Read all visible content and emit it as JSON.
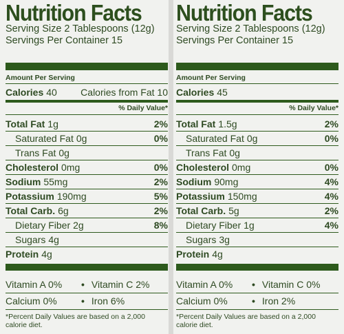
{
  "labels": [
    {
      "title": "Nutrition Facts",
      "serving_size": "Serving Size 2 Tablespoons (12g)",
      "servings": "Servings Per Container 15",
      "amount_per_serving": "Amount Per Serving",
      "calories_label": "Calories",
      "calories": "40",
      "calories_fat": "Calories from Fat 10",
      "dv_header": "% Daily Value*",
      "nutrients": [
        {
          "name": "Total Fat",
          "amount": "1g",
          "dv": "2%"
        },
        {
          "name": "Saturated Fat",
          "amount": "0g",
          "dv": "0%"
        },
        {
          "name": "Trans Fat",
          "amount": "0g"
        },
        {
          "name": "Cholesterol",
          "amount": "0mg",
          "dv": "0%"
        },
        {
          "name": "Sodium",
          "amount": "55mg",
          "dv": "2%"
        },
        {
          "name": "Potassium",
          "amount": "190mg",
          "dv": "5%"
        },
        {
          "name": "Total Carb.",
          "amount": "6g",
          "dv": "2%"
        },
        {
          "name": "Dietary Fiber",
          "amount": "2g",
          "dv": "8%"
        },
        {
          "name": "Sugars",
          "amount": "4g"
        },
        {
          "name": "Protein",
          "amount": "4g"
        }
      ],
      "vitamins": [
        [
          "Vitamin A  0%",
          "Vitamin C 2%"
        ],
        [
          "Calcium 0%",
          "Iron 6%"
        ]
      ],
      "footnote": [
        "*Percent Daily Values are based on a 2,000",
        "calorie diet."
      ]
    },
    {
      "title": "Nutrition Facts",
      "serving_size": "Serving Size 2 Tablespoons (12g)",
      "servings": "Servings Per Container 15",
      "amount_per_serving": "Amount Per Serving",
      "calories_label": "Calories",
      "calories": "45",
      "calories_fat": "",
      "dv_header": "% Daily Value*",
      "nutrients": [
        {
          "name": "Total Fat",
          "amount": "1.5g",
          "dv": "2%"
        },
        {
          "name": "Saturated Fat",
          "amount": "0g",
          "dv": "0%"
        },
        {
          "name": "Trans Fat",
          "amount": "0g"
        },
        {
          "name": "Cholesterol",
          "amount": "0mg",
          "dv": "0%"
        },
        {
          "name": "Sodium",
          "amount": "90mg",
          "dv": "4%"
        },
        {
          "name": "Potassium",
          "amount": "150mg",
          "dv": "4%"
        },
        {
          "name": "Total Carb.",
          "amount": "5g",
          "dv": "2%"
        },
        {
          "name": "Dietary Fiber",
          "amount": "1g",
          "dv": "4%"
        },
        {
          "name": "Sugars",
          "amount": "3g"
        },
        {
          "name": "Protein",
          "amount": "4g"
        }
      ],
      "vitamins": [
        [
          "Vitamin A  0%",
          "Vitamin C 0%"
        ],
        [
          "Calcium 0%",
          "Iron 2%"
        ]
      ],
      "footnote": [
        "*Percent Daily Values are based on a 2,000",
        "calorie diet."
      ]
    }
  ]
}
